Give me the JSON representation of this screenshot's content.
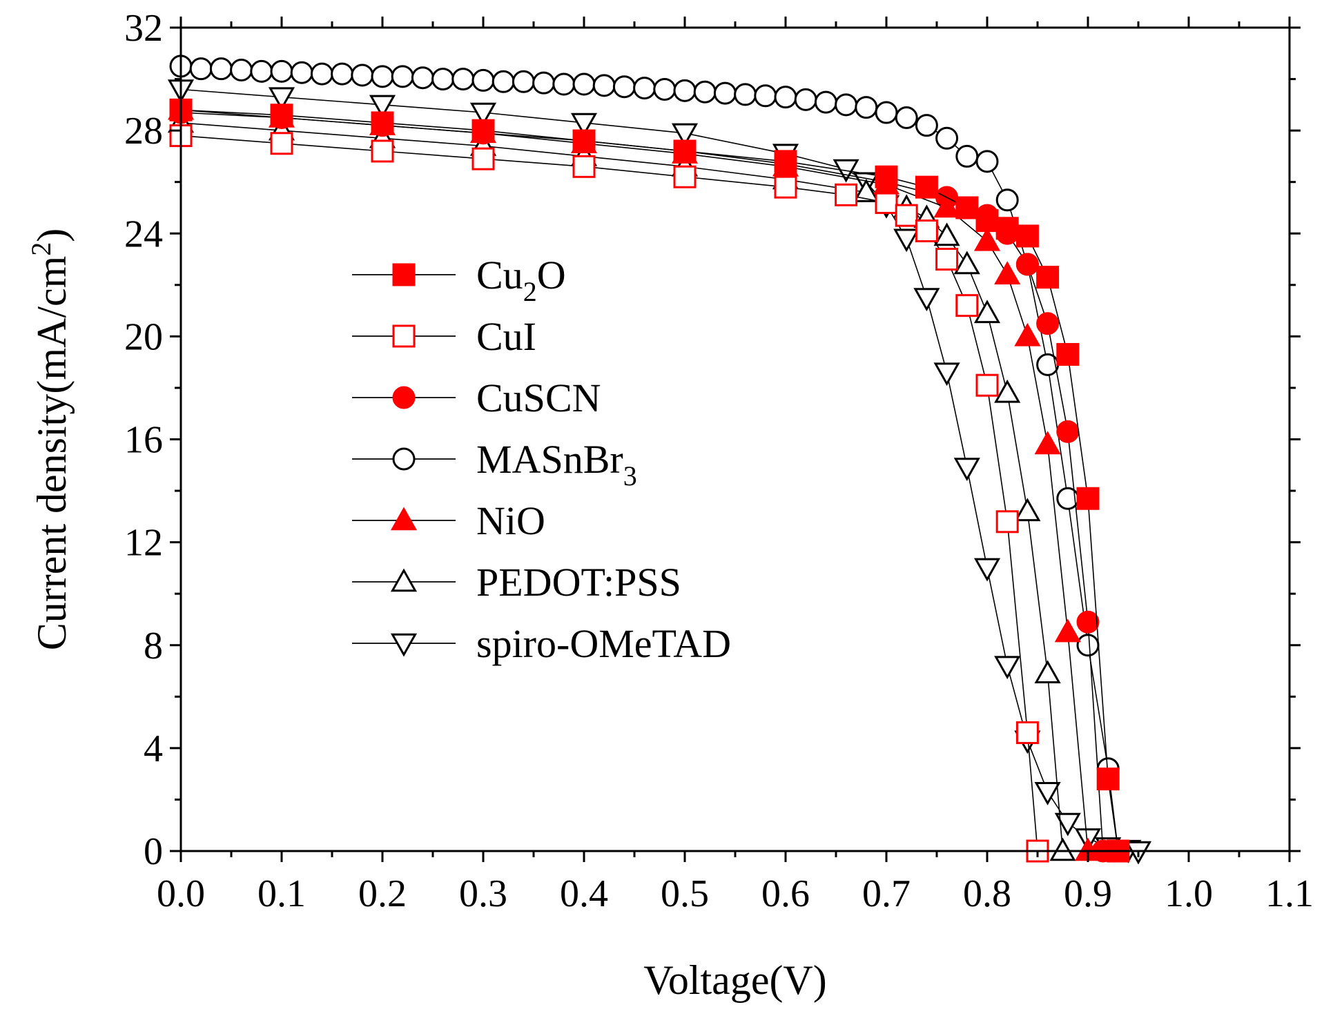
{
  "chart_data": {
    "type": "line",
    "xlabel": "Voltage(V)",
    "ylabel_prefix": "Current density(mA/cm",
    "ylabel_sup": "2",
    "ylabel_suffix": ")",
    "xlim": [
      0.0,
      1.1
    ],
    "ylim": [
      0,
      32
    ],
    "x_ticks": [
      0.0,
      0.1,
      0.2,
      0.3,
      0.4,
      0.5,
      0.6,
      0.7,
      0.8,
      0.9,
      1.0,
      1.1
    ],
    "x_tick_labels": [
      "0.0",
      "0.1",
      "0.2",
      "0.3",
      "0.4",
      "0.5",
      "0.6",
      "0.7",
      "0.8",
      "0.9",
      "1.0",
      "1.1"
    ],
    "y_ticks": [
      0,
      4,
      8,
      12,
      16,
      20,
      24,
      28,
      32
    ],
    "y_tick_labels": [
      "0",
      "4",
      "8",
      "12",
      "16",
      "20",
      "24",
      "28",
      "32"
    ],
    "grid": false,
    "legend_position": "center-left",
    "series": [
      {
        "name": "Cu2O",
        "label_main": "Cu",
        "label_sub": "2",
        "label_tail": "O",
        "marker": "square",
        "filled": true,
        "color": "#ff0000",
        "x": [
          0.0,
          0.1,
          0.2,
          0.3,
          0.4,
          0.5,
          0.6,
          0.7,
          0.74,
          0.78,
          0.8,
          0.82,
          0.84,
          0.86,
          0.88,
          0.9,
          0.92,
          0.93
        ],
        "y": [
          28.8,
          28.6,
          28.3,
          28.0,
          27.6,
          27.2,
          26.8,
          26.2,
          25.8,
          25.0,
          24.5,
          24.2,
          23.9,
          22.3,
          19.3,
          13.7,
          2.8,
          0
        ]
      },
      {
        "name": "CuI",
        "label_main": "CuI",
        "label_sub": "",
        "label_tail": "",
        "marker": "square",
        "filled": false,
        "color": "#ff0000",
        "x": [
          0.0,
          0.1,
          0.2,
          0.3,
          0.4,
          0.5,
          0.6,
          0.66,
          0.7,
          0.72,
          0.74,
          0.76,
          0.78,
          0.8,
          0.82,
          0.84,
          0.85
        ],
        "y": [
          27.8,
          27.5,
          27.2,
          26.9,
          26.6,
          26.2,
          25.8,
          25.5,
          25.2,
          24.7,
          24.1,
          23.0,
          21.2,
          18.1,
          12.8,
          4.6,
          0
        ]
      },
      {
        "name": "CuSCN",
        "label_main": "CuSCN",
        "label_sub": "",
        "label_tail": "",
        "marker": "circle",
        "filled": true,
        "color": "#ff0000",
        "x": [
          0.0,
          0.1,
          0.2,
          0.3,
          0.4,
          0.5,
          0.6,
          0.7,
          0.76,
          0.8,
          0.82,
          0.84,
          0.86,
          0.88,
          0.9,
          0.915
        ],
        "y": [
          28.7,
          28.5,
          28.2,
          27.9,
          27.6,
          27.2,
          26.7,
          26.0,
          25.4,
          24.7,
          24.0,
          22.8,
          20.5,
          16.3,
          8.9,
          0
        ]
      },
      {
        "name": "MASnBr3",
        "label_main": "MASnBr",
        "label_sub": "3",
        "label_tail": "",
        "marker": "circle",
        "filled": false,
        "color": "#000000",
        "x": [
          0.0,
          0.02,
          0.04,
          0.06,
          0.08,
          0.1,
          0.12,
          0.14,
          0.16,
          0.18,
          0.2,
          0.22,
          0.24,
          0.26,
          0.28,
          0.3,
          0.32,
          0.34,
          0.36,
          0.38,
          0.4,
          0.42,
          0.44,
          0.46,
          0.48,
          0.5,
          0.52,
          0.54,
          0.56,
          0.58,
          0.6,
          0.62,
          0.64,
          0.66,
          0.68,
          0.7,
          0.72,
          0.74,
          0.76,
          0.78,
          0.8,
          0.82,
          0.84,
          0.86,
          0.88,
          0.9,
          0.92,
          0.93
        ],
        "y": [
          30.5,
          30.4,
          30.4,
          30.35,
          30.3,
          30.3,
          30.25,
          30.2,
          30.2,
          30.15,
          30.1,
          30.1,
          30.05,
          30.0,
          30.0,
          29.95,
          29.9,
          29.9,
          29.85,
          29.8,
          29.8,
          29.75,
          29.7,
          29.65,
          29.6,
          29.55,
          29.5,
          29.45,
          29.4,
          29.35,
          29.3,
          29.2,
          29.1,
          29.0,
          28.9,
          28.7,
          28.5,
          28.2,
          27.7,
          27.0,
          26.8,
          25.3,
          22.8,
          18.9,
          13.7,
          8.0,
          3.2,
          0
        ]
      },
      {
        "name": "NiO",
        "label_main": "NiO",
        "label_sub": "",
        "label_tail": "",
        "marker": "triangle-up",
        "filled": true,
        "color": "#ff0000",
        "x": [
          0.0,
          0.1,
          0.2,
          0.3,
          0.4,
          0.5,
          0.6,
          0.7,
          0.76,
          0.8,
          0.82,
          0.84,
          0.86,
          0.88,
          0.9
        ],
        "y": [
          28.8,
          28.5,
          28.2,
          27.9,
          27.5,
          27.1,
          26.6,
          25.9,
          25.0,
          23.7,
          22.4,
          20.0,
          15.8,
          8.5,
          0
        ]
      },
      {
        "name": "PEDOT:PSS",
        "label_main": "PEDOT:PSS",
        "label_sub": "",
        "label_tail": "",
        "marker": "triangle-up",
        "filled": false,
        "color": "#000000",
        "x": [
          0.0,
          0.1,
          0.2,
          0.3,
          0.4,
          0.5,
          0.6,
          0.68,
          0.72,
          0.74,
          0.76,
          0.78,
          0.8,
          0.82,
          0.84,
          0.86,
          0.875
        ],
        "y": [
          28.3,
          28.0,
          27.7,
          27.4,
          27.0,
          26.6,
          26.1,
          25.6,
          25.0,
          24.6,
          23.9,
          22.8,
          20.9,
          17.8,
          13.2,
          6.9,
          0
        ]
      },
      {
        "name": "spiro-OMeTAD",
        "label_main": "spiro-OMeTAD",
        "label_sub": "",
        "label_tail": "",
        "marker": "triangle-down",
        "filled": false,
        "color": "#000000",
        "x": [
          0.0,
          0.1,
          0.2,
          0.3,
          0.4,
          0.5,
          0.6,
          0.66,
          0.68,
          0.7,
          0.72,
          0.74,
          0.76,
          0.78,
          0.8,
          0.82,
          0.84,
          0.86,
          0.88,
          0.9,
          0.92,
          0.94,
          0.95
        ],
        "y": [
          29.6,
          29.3,
          29.0,
          28.7,
          28.3,
          27.9,
          27.1,
          26.5,
          26.0,
          25.1,
          23.8,
          21.5,
          18.6,
          14.9,
          11.0,
          7.2,
          4.3,
          2.3,
          1.1,
          0.5,
          0.15,
          0.05,
          0
        ]
      }
    ]
  }
}
